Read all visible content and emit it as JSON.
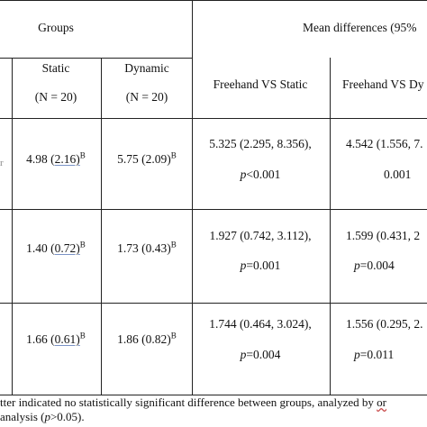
{
  "header": {
    "groups": "Groups",
    "mean_diff": "Mean differences (95%",
    "static": "Static",
    "static_n": "(N = 20)",
    "dynamic": "Dynamic",
    "dynamic_n": "(N = 20)",
    "fh_static": "Freehand VS Static",
    "fh_dynamic": "Freehand VS Dy"
  },
  "rows": [
    {
      "left_edge": "r",
      "static_mean": "4.98 (",
      "static_sd": "2.16)",
      "static_sup": "B",
      "dynamic_mean": "5.75 (2.09)",
      "dynamic_sup": "B",
      "ci_static": "5.325 (2.295, 8.356),",
      "p_static_label": "p",
      "p_static_val": "<0.001",
      "ci_dynamic": "4.542 (1.556, 7.",
      "p_dynamic_val": "0.001"
    },
    {
      "static_mean": "1.40 (",
      "static_sd": "0.72)",
      "static_sup": "B",
      "dynamic_mean": "1.73 (0.43)",
      "dynamic_sup": "B",
      "ci_static": "1.927 (0.742, 3.112),",
      "p_static_label": "p",
      "p_static_val": "=0.001",
      "ci_dynamic": "1.599 (0.431, 2",
      "p_dynamic_label": "p",
      "p_dynamic_val": "=0.004"
    },
    {
      "static_mean": "1.66 (",
      "static_sd": "0.61)",
      "static_sup": "B",
      "dynamic_mean": "1.86 (0.82)",
      "dynamic_sup": "B",
      "ci_static": "1.744 (0.464, 3.024),",
      "p_static_label": "p",
      "p_static_val": "=0.004",
      "ci_dynamic": "1.556 (0.295, 2.",
      "p_dynamic_label": "p",
      "p_dynamic_val": "=0.011"
    }
  ],
  "footnote": {
    "line1_prefix": "tter indicated no statistically significant difference between groups, analyzed by ",
    "line1_suffix": "or",
    "line2_prefix": " analysis (",
    "line2_p": "p",
    "line2_suffix": ">0.05)."
  }
}
